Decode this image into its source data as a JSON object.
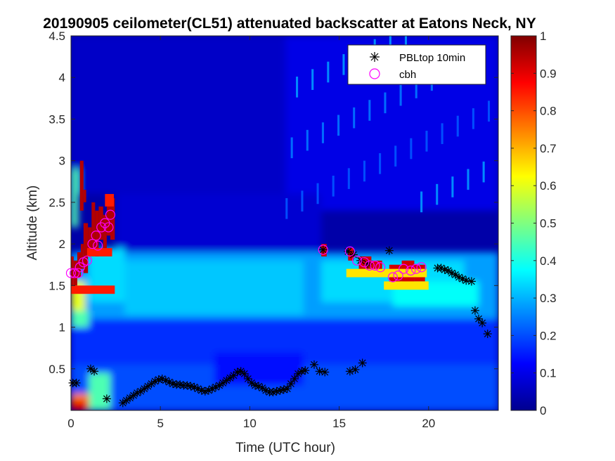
{
  "chart_data": {
    "type": "heatmap",
    "title": "20190905 ceilometer(CL51) attenuated backscatter at Eatons Neck, NY",
    "xlabel": "Time (UTC hour)",
    "ylabel": "Altitude (km)",
    "xlim": [
      0,
      23.9
    ],
    "ylim": [
      0,
      4.5
    ],
    "xticks": [
      0,
      5,
      10,
      15,
      20
    ],
    "xtick_labels": [
      "0",
      "5",
      "10",
      "15",
      "20"
    ],
    "yticks": [
      0.5,
      1,
      1.5,
      2,
      2.5,
      3,
      3.5,
      4,
      4.5
    ],
    "ytick_labels": [
      "0.5",
      "1",
      "1.5",
      "2",
      "2.5",
      "3",
      "3.5",
      "4",
      "4.5"
    ],
    "colorbar": {
      "colormap": "jet",
      "range": [
        0,
        1
      ],
      "ticks": [
        0,
        0.1,
        0.2,
        0.3,
        0.4,
        0.5,
        0.6,
        0.7,
        0.8,
        0.9,
        1
      ],
      "tick_labels": [
        "0",
        "0.1",
        "0.2",
        "0.3",
        "0.4",
        "0.5",
        "0.6",
        "0.7",
        "0.8",
        "0.9",
        "1"
      ]
    },
    "legend": {
      "placement": "top-right",
      "entries": [
        {
          "label": "PBLtop 10min",
          "marker": "asterisk",
          "color": "#000000"
        },
        {
          "label": "cbh",
          "marker": "circle",
          "color": "#ff00ff"
        }
      ]
    },
    "series": [
      {
        "name": "PBLtop 10min",
        "marker": "asterisk",
        "color": "#000000",
        "points": [
          [
            0.1,
            0.33
          ],
          [
            0.3,
            0.33
          ],
          [
            1.1,
            0.5
          ],
          [
            1.3,
            0.47
          ],
          [
            2.0,
            0.14
          ],
          [
            2.9,
            0.09
          ],
          [
            3.1,
            0.12
          ],
          [
            3.3,
            0.15
          ],
          [
            3.5,
            0.18
          ],
          [
            3.7,
            0.21
          ],
          [
            3.9,
            0.23
          ],
          [
            4.1,
            0.26
          ],
          [
            4.3,
            0.29
          ],
          [
            4.5,
            0.32
          ],
          [
            4.7,
            0.35
          ],
          [
            4.9,
            0.37
          ],
          [
            5.1,
            0.38
          ],
          [
            5.3,
            0.36
          ],
          [
            5.5,
            0.34
          ],
          [
            5.7,
            0.32
          ],
          [
            5.9,
            0.31
          ],
          [
            6.1,
            0.31
          ],
          [
            6.3,
            0.3
          ],
          [
            6.5,
            0.3
          ],
          [
            6.7,
            0.29
          ],
          [
            6.9,
            0.28
          ],
          [
            7.1,
            0.26
          ],
          [
            7.3,
            0.24
          ],
          [
            7.5,
            0.23
          ],
          [
            7.7,
            0.24
          ],
          [
            7.9,
            0.26
          ],
          [
            8.1,
            0.28
          ],
          [
            8.3,
            0.3
          ],
          [
            8.5,
            0.33
          ],
          [
            8.7,
            0.36
          ],
          [
            8.9,
            0.39
          ],
          [
            9.1,
            0.42
          ],
          [
            9.3,
            0.46
          ],
          [
            9.5,
            0.47
          ],
          [
            9.7,
            0.44
          ],
          [
            9.9,
            0.38
          ],
          [
            10.1,
            0.33
          ],
          [
            10.3,
            0.3
          ],
          [
            10.5,
            0.29
          ],
          [
            10.7,
            0.27
          ],
          [
            10.9,
            0.24
          ],
          [
            11.1,
            0.22
          ],
          [
            11.3,
            0.22
          ],
          [
            11.5,
            0.23
          ],
          [
            11.7,
            0.24
          ],
          [
            11.9,
            0.25
          ],
          [
            12.1,
            0.26
          ],
          [
            12.3,
            0.32
          ],
          [
            12.5,
            0.38
          ],
          [
            12.7,
            0.44
          ],
          [
            12.9,
            0.47
          ],
          [
            13.1,
            0.48
          ],
          [
            13.6,
            0.55
          ],
          [
            13.9,
            0.47
          ],
          [
            14.2,
            0.46
          ],
          [
            15.6,
            0.47
          ],
          [
            15.9,
            0.49
          ],
          [
            16.3,
            0.57
          ],
          [
            14.1,
            1.93
          ],
          [
            15.5,
            1.91
          ],
          [
            15.8,
            1.87
          ],
          [
            16.2,
            1.8
          ],
          [
            16.6,
            1.76
          ],
          [
            17.8,
            1.92
          ],
          [
            20.5,
            1.71
          ],
          [
            20.7,
            1.71
          ],
          [
            20.9,
            1.69
          ],
          [
            21.1,
            1.68
          ],
          [
            21.3,
            1.65
          ],
          [
            21.5,
            1.63
          ],
          [
            21.7,
            1.6
          ],
          [
            21.9,
            1.58
          ],
          [
            22.1,
            1.56
          ],
          [
            22.4,
            1.55
          ],
          [
            22.6,
            1.2
          ],
          [
            22.8,
            1.1
          ],
          [
            23.0,
            1.05
          ],
          [
            23.3,
            0.92
          ]
        ]
      },
      {
        "name": "cbh",
        "marker": "circle",
        "color": "#ff00ff",
        "points": [
          [
            0.0,
            1.65
          ],
          [
            0.2,
            1.65
          ],
          [
            0.4,
            1.65
          ],
          [
            0.5,
            1.72
          ],
          [
            0.7,
            1.78
          ],
          [
            0.9,
            1.8
          ],
          [
            1.2,
            2.0
          ],
          [
            1.4,
            2.1
          ],
          [
            1.5,
            1.98
          ],
          [
            1.7,
            2.2
          ],
          [
            1.9,
            2.25
          ],
          [
            2.1,
            2.2
          ],
          [
            2.2,
            2.35
          ],
          [
            14.1,
            1.93
          ],
          [
            15.6,
            1.91
          ],
          [
            16.0,
            1.8
          ],
          [
            16.4,
            1.78
          ],
          [
            16.7,
            1.74
          ],
          [
            17.0,
            1.74
          ],
          [
            17.3,
            1.72
          ],
          [
            18.0,
            1.6
          ],
          [
            18.3,
            1.62
          ],
          [
            18.6,
            1.7
          ],
          [
            19.0,
            1.68
          ],
          [
            19.3,
            1.7
          ],
          [
            19.6,
            1.72
          ]
        ]
      }
    ]
  }
}
